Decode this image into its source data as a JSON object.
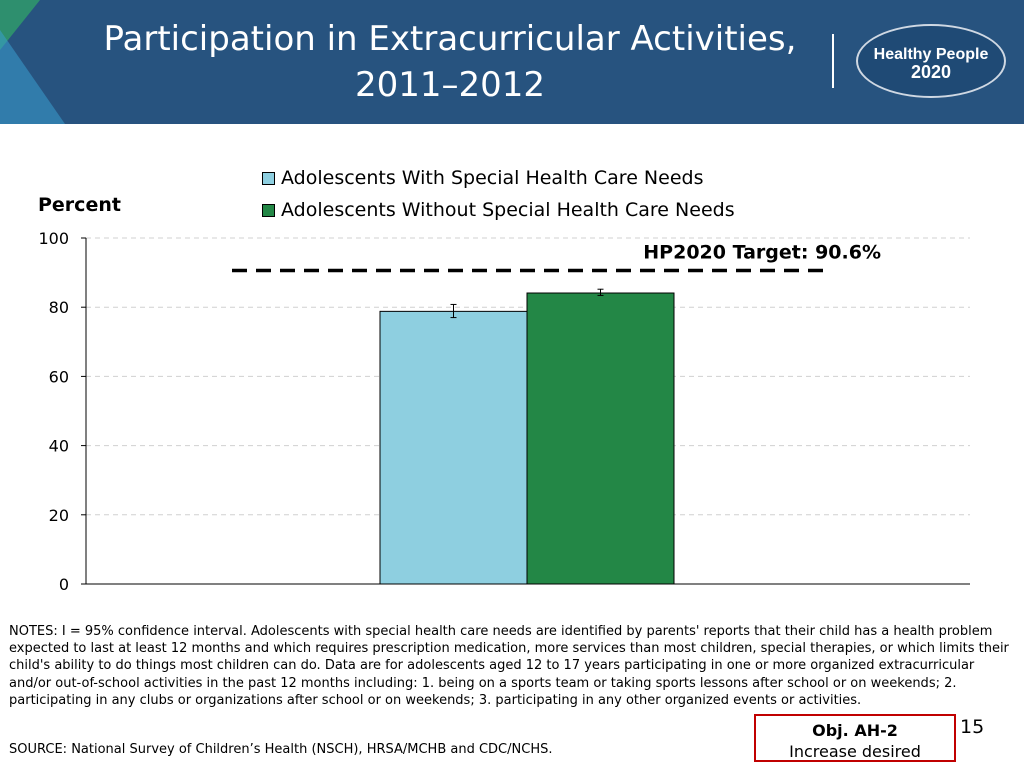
{
  "header": {
    "title_line1": "Participation in Extracurricular Activities,",
    "title_line2": "2011–2012",
    "logo_line1": "Healthy People",
    "logo_line2": "2020"
  },
  "chart_data": {
    "type": "bar",
    "title": "Participation in Extracurricular Activities, 2011–2012",
    "ylabel": "Percent",
    "ylim": [
      0,
      100
    ],
    "yticks": [
      0,
      20,
      40,
      60,
      80,
      100
    ],
    "grid": true,
    "legend_position": "top",
    "series": [
      {
        "name": "Adolescents With Special Health Care Needs",
        "value": 78.8,
        "ci": [
          77.0,
          80.8
        ],
        "color": "#8ecfe0"
      },
      {
        "name": "Adolescents Without Special Health Care Needs",
        "value": 84.1,
        "ci": [
          83.4,
          85.2
        ],
        "color": "#238746"
      }
    ],
    "target": {
      "value": 90.6,
      "label": "HP2020 Target: 90.6%"
    }
  },
  "notes": "NOTES: I = 95% confidence interval. Adolescents with special health care needs are identified by parents' reports that their child has a health problem expected to last at least 12 months and which requires prescription medication, more services than most children, special therapies, or which limits their child's ability to do things most children can do. Data are for adolescents aged 12 to 17 years participating in one or more organized extracurricular and/or out-of-school activities in the past 12 months including: 1. being on a sports team or taking sports lessons after school or on weekends; 2. participating in any clubs or organizations after school or on weekends; 3. participating in any other organized events or activities.",
  "source": "SOURCE: National Survey of Children’s Health (NSCH), HRSA/MCHB and CDC/NCHS.",
  "objective": {
    "code": "Obj. AH-2",
    "direction": "Increase desired"
  },
  "page_number": "15"
}
